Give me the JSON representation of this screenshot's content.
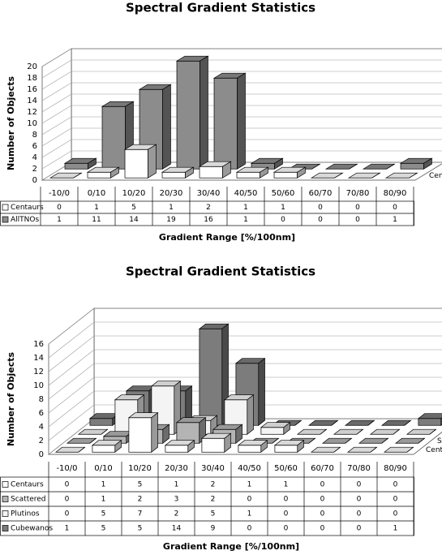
{
  "chart_data": [
    {
      "type": "bar3d",
      "title": "Spectral Gradient Statistics",
      "ylabel": "Number of Objects",
      "xlabel": "Gradient Range  [%/100nm]",
      "categories": [
        "-10/0",
        "0/10",
        "10/20",
        "20/30",
        "30/40",
        "40/50",
        "50/60",
        "60/70",
        "70/80",
        "80/90"
      ],
      "series": [
        {
          "name": "Centaurs",
          "color": "#ffffff",
          "values": [
            0,
            1,
            5,
            1,
            2,
            1,
            1,
            0,
            0,
            0
          ]
        },
        {
          "name": "AllTNOs",
          "color": "#8c8c8c",
          "values": [
            1,
            11,
            14,
            19,
            16,
            1,
            0,
            0,
            0,
            1
          ]
        }
      ],
      "ylim": [
        0,
        20
      ],
      "yticks": [
        0,
        2,
        4,
        6,
        8,
        10,
        12,
        14,
        16,
        18,
        20
      ],
      "grid": true
    },
    {
      "type": "bar3d",
      "title": "Spectral Gradient Statistics",
      "ylabel": "Number of Objects",
      "xlabel": "Gradient Range  [%/100nm]",
      "categories": [
        "-10/0",
        "0/10",
        "10/20",
        "20/30",
        "30/40",
        "40/50",
        "50/60",
        "60/70",
        "70/80",
        "80/90"
      ],
      "series": [
        {
          "name": "Centaurs",
          "color": "#ffffff",
          "values": [
            0,
            1,
            5,
            1,
            2,
            1,
            1,
            0,
            0,
            0
          ]
        },
        {
          "name": "Scattered",
          "color": "#b4b4b4",
          "values": [
            0,
            1,
            2,
            3,
            2,
            0,
            0,
            0,
            0,
            0
          ]
        },
        {
          "name": "Plutinos",
          "color": "#f4f4f4",
          "values": [
            0,
            5,
            7,
            2,
            5,
            1,
            0,
            0,
            0,
            0
          ]
        },
        {
          "name": "Cubewanos",
          "color": "#7c7c7c",
          "values": [
            1,
            5,
            5,
            14,
            9,
            0,
            0,
            0,
            0,
            1
          ]
        }
      ],
      "ylim": [
        0,
        16
      ],
      "yticks": [
        0,
        2,
        4,
        6,
        8,
        10,
        12,
        14,
        16
      ],
      "grid": true
    }
  ]
}
